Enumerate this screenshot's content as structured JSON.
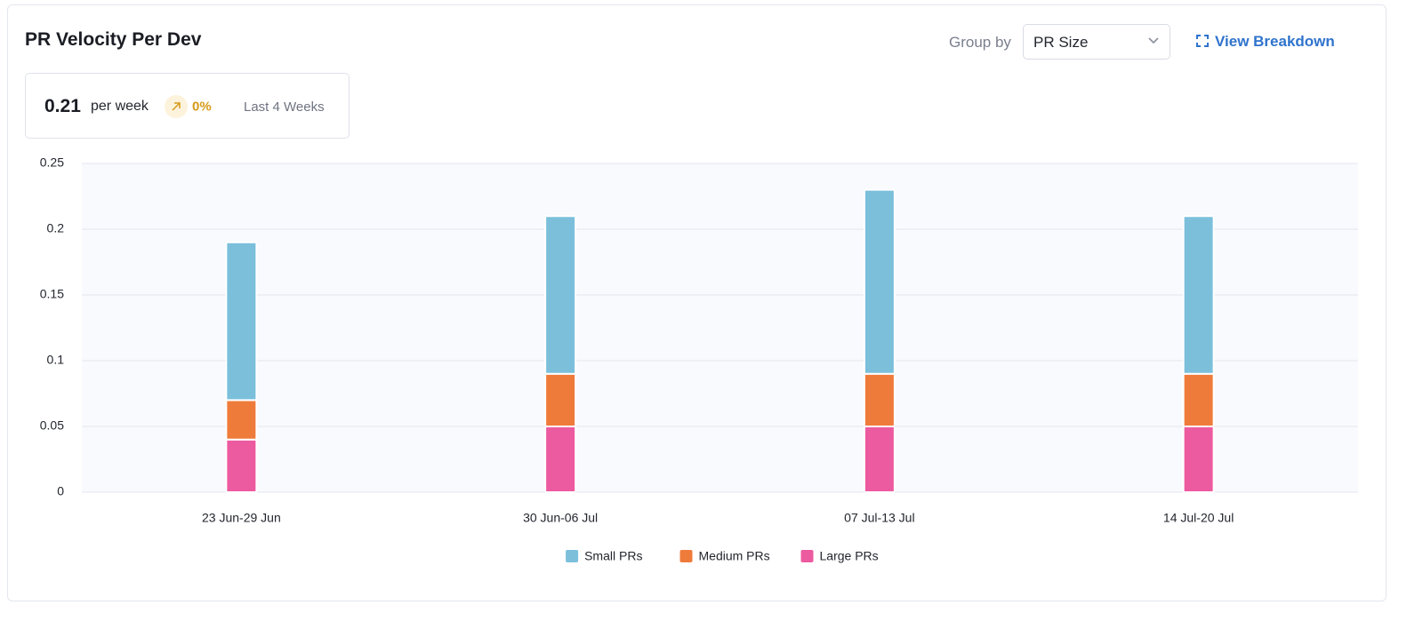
{
  "header": {
    "title": "PR Velocity Per Dev",
    "group_by_label": "Group by",
    "group_by_value": "PR Size",
    "action": "View Breakdown"
  },
  "summary": {
    "value": "0.21",
    "unit": "per week",
    "change": "0%",
    "period": "Last 4 Weeks"
  },
  "chart_data": {
    "type": "stacked-bar",
    "categories": [
      "23 Jun-29 Jun",
      "30 Jun-06 Jul",
      "07 Jul-13 Jul",
      "14 Jul-20 Jul"
    ],
    "series": [
      {
        "name": "Small PRs",
        "color": "#7bbfdb",
        "values": [
          0.12,
          0.12,
          0.14,
          0.12
        ]
      },
      {
        "name": "Medium PRs",
        "color": "#ef7b3b",
        "values": [
          0.03,
          0.04,
          0.04,
          0.04
        ]
      },
      {
        "name": "Large PRs",
        "color": "#ec5a9f",
        "values": [
          0.04,
          0.05,
          0.05,
          0.05
        ]
      }
    ],
    "ylim": [
      0,
      0.25
    ],
    "yticks": [
      0,
      0.05,
      0.1,
      0.15,
      0.2,
      0.25
    ],
    "grid": true,
    "legend": "bottom"
  }
}
